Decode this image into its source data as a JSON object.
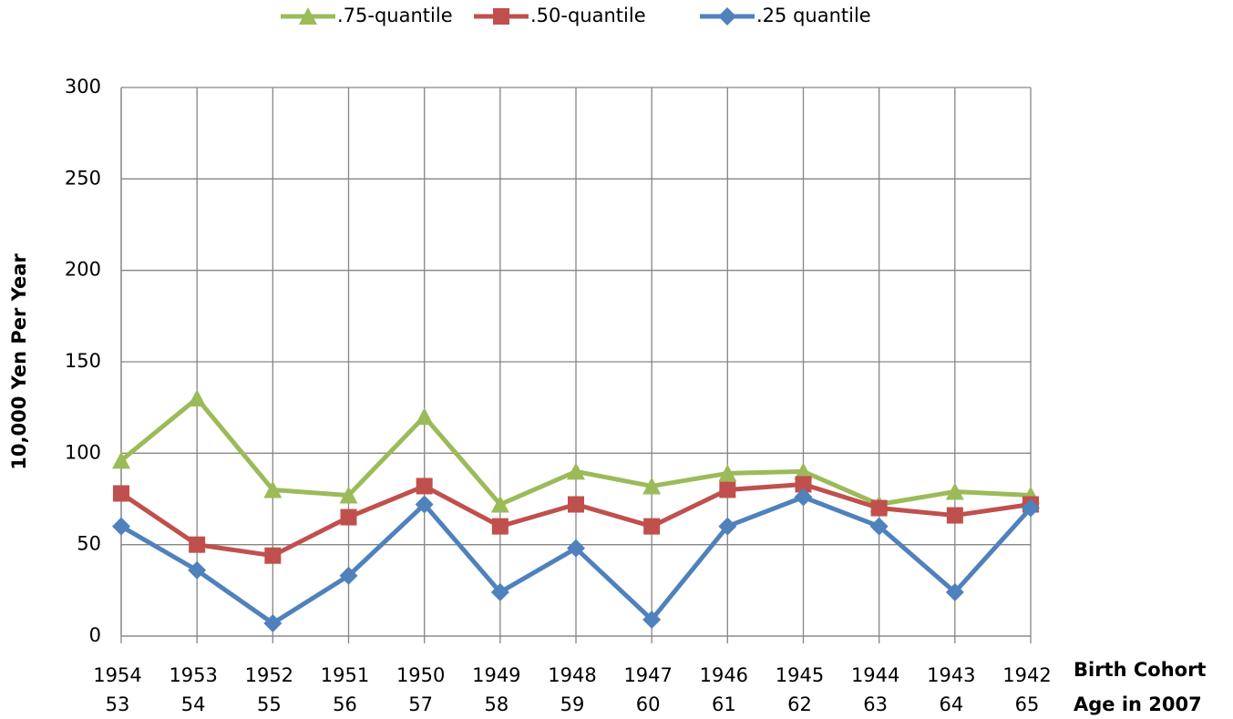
{
  "chart_data": {
    "type": "line",
    "ylabel": "10,000 Yen Per Year",
    "xlabel": "Birth Cohort",
    "xlabel2": "Age in 2007",
    "categories": [
      "1954",
      "1953",
      "1952",
      "1951",
      "1950",
      "1949",
      "1948",
      "1947",
      "1946",
      "1945",
      "1944",
      "1943",
      "1942"
    ],
    "categories2": [
      "53",
      "54",
      "55",
      "56",
      "57",
      "58",
      "59",
      "60",
      "61",
      "62",
      "63",
      "64",
      "65"
    ],
    "series": [
      {
        "name": ".75-quantile",
        "color": "#9bbb59",
        "marker": "triangle",
        "values": [
          96,
          130,
          80,
          77,
          120,
          72,
          90,
          82,
          89,
          90,
          72,
          79,
          77
        ]
      },
      {
        "name": ".50-quantile",
        "color": "#c0504d",
        "marker": "square",
        "values": [
          78,
          50,
          44,
          65,
          82,
          60,
          72,
          60,
          80,
          83,
          70,
          66,
          72
        ]
      },
      {
        "name": ".25 quantile",
        "color": "#4f81bd",
        "marker": "diamond",
        "values": [
          60,
          36,
          7,
          33,
          72,
          24,
          48,
          9,
          60,
          76,
          60,
          24,
          70
        ]
      }
    ],
    "ylim": [
      0,
      300
    ],
    "yticks": [
      0,
      50,
      100,
      150,
      200,
      250,
      300
    ],
    "grid": true,
    "legend": "top"
  }
}
